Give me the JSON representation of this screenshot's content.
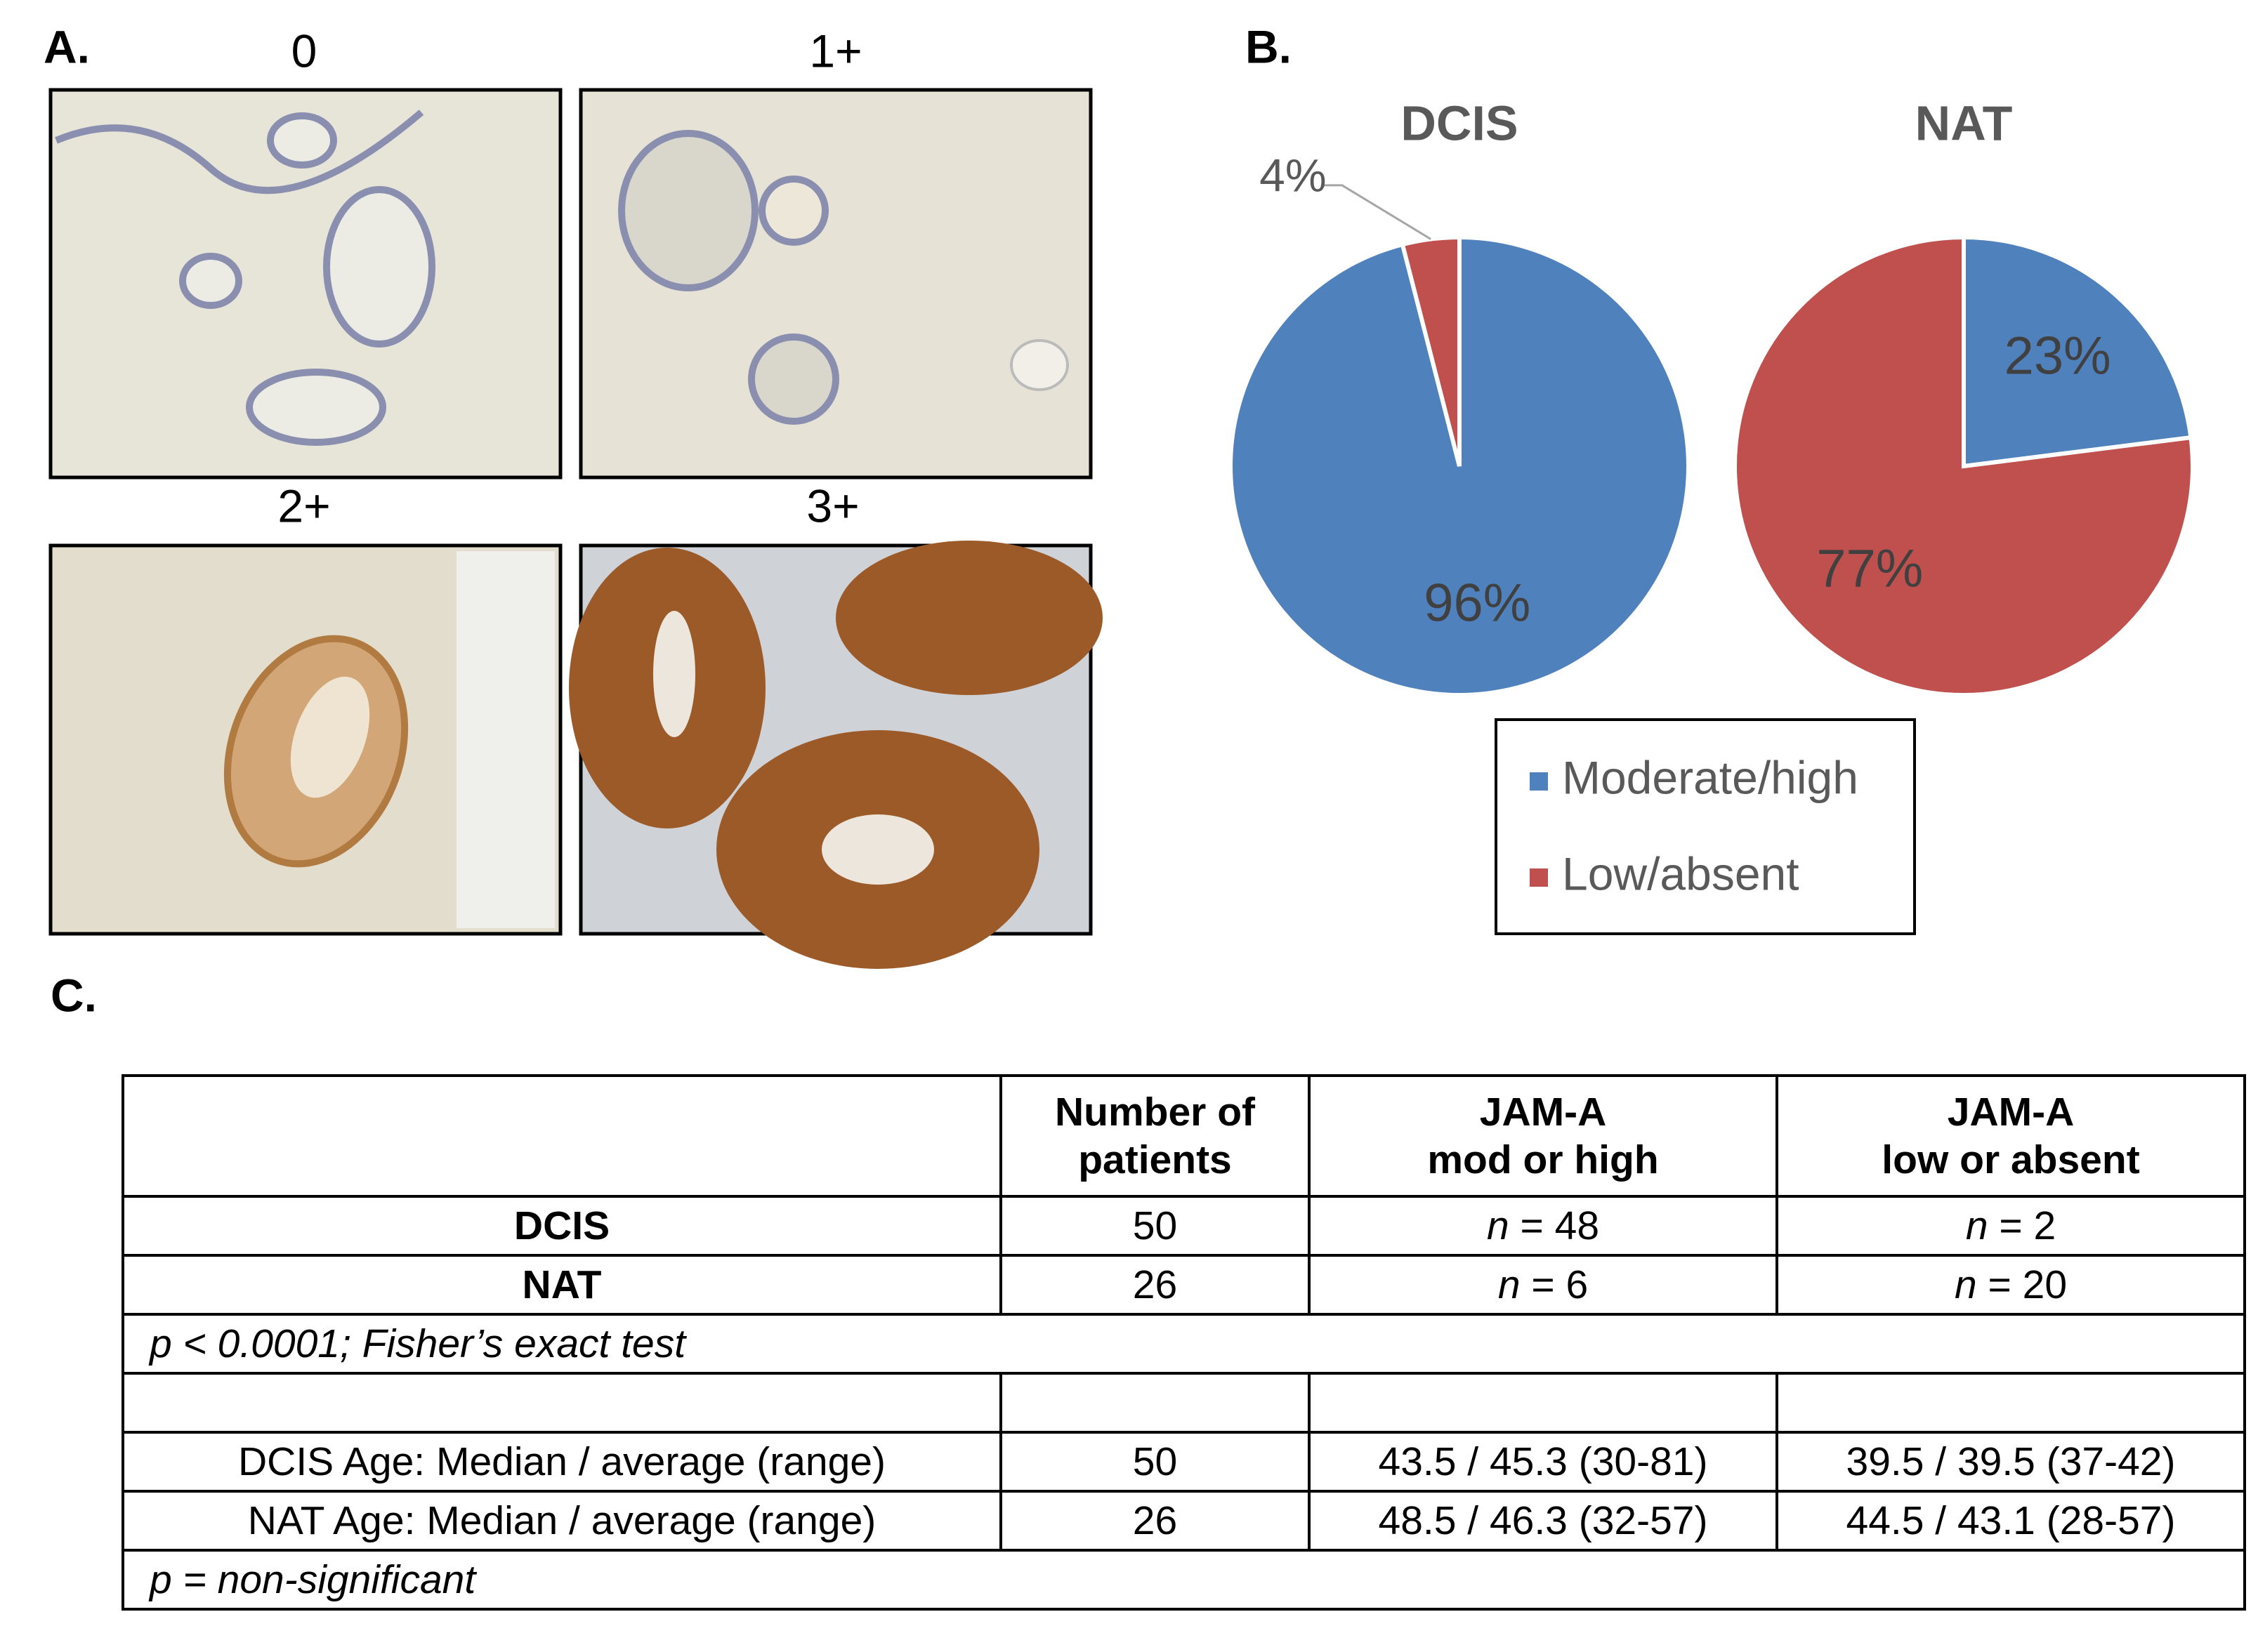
{
  "panel_labels": [
    "A.",
    "B.",
    "C."
  ],
  "panel_a": {
    "scores": [
      "0",
      "1+",
      "2+",
      "3+"
    ]
  },
  "chart_data": [
    {
      "type": "pie",
      "title": "DCIS",
      "categories": [
        "Moderate/high",
        "Low/absent"
      ],
      "values": [
        96,
        4
      ],
      "value_labels": [
        "96%",
        "4%"
      ],
      "colors": [
        "#4f81bd",
        "#c0504d"
      ]
    },
    {
      "type": "pie",
      "title": "NAT",
      "categories": [
        "Moderate/high",
        "Low/absent"
      ],
      "values": [
        23,
        77
      ],
      "value_labels": [
        "23%",
        "77%"
      ],
      "colors": [
        "#4f81bd",
        "#c0504d"
      ]
    }
  ],
  "table": {
    "header": [
      null,
      [
        "Number of",
        "patients"
      ],
      [
        "JAM-A",
        "mod or high"
      ],
      [
        "JAM-A",
        "low or absent"
      ]
    ],
    "sections": [
      {
        "rows": [
          [
            "DCIS",
            50,
            [
              "n",
              "= 48"
            ],
            [
              "n",
              "= 2"
            ]
          ],
          [
            "NAT",
            26,
            [
              "n",
              "= 6"
            ],
            [
              "n",
              "= 20"
            ]
          ]
        ],
        "note": "p < 0.0001; Fisher’s exact test"
      },
      {
        "rows": [
          [
            "DCIS Age: Median / average (range)",
            50,
            "43.5 / 45.3 (30-81)",
            "39.5 / 39.5 (37-42)"
          ],
          [
            "NAT Age: Median / average (range)",
            26,
            "48.5 / 46.3 (32-57)",
            "44.5 / 43.1 (28-57)"
          ]
        ],
        "note": "p = non-significant"
      }
    ]
  }
}
